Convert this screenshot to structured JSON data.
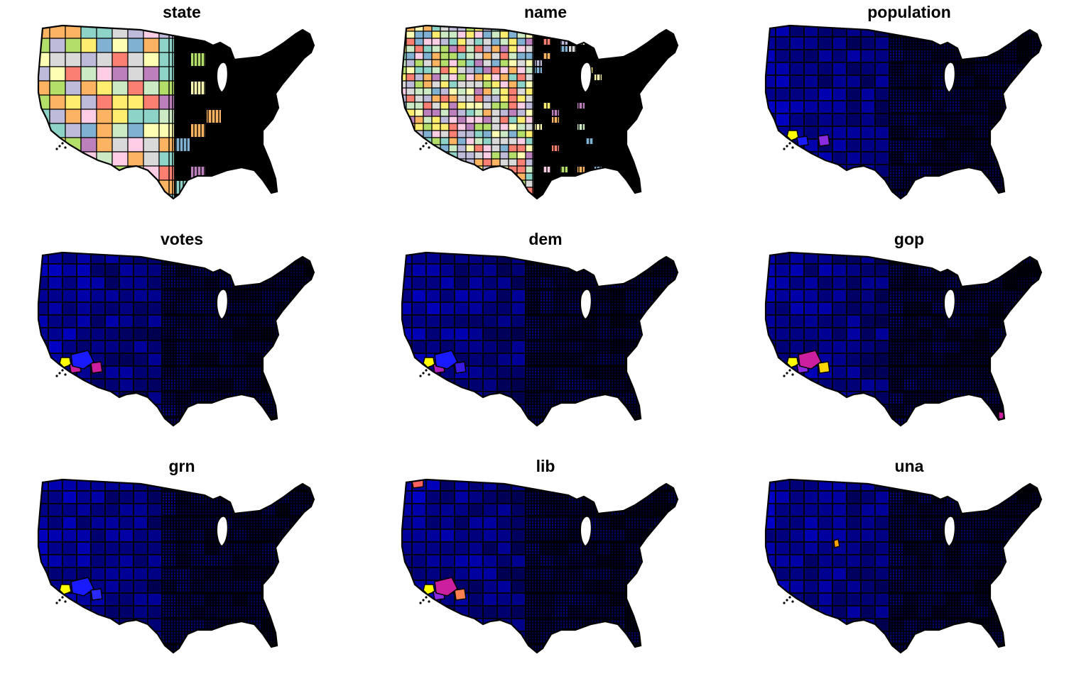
{
  "figure": {
    "panels": [
      {
        "title": "state",
        "style": "categorical"
      },
      {
        "title": "name",
        "style": "categorical-fine"
      },
      {
        "title": "population",
        "style": "sequential",
        "hotspots": [
          {
            "region": "la",
            "color": "#ffff00"
          },
          {
            "region": "sd",
            "color": "#1a1aff"
          },
          {
            "region": "az-maricopa",
            "color": "#8a2be2"
          }
        ]
      },
      {
        "title": "votes",
        "style": "sequential",
        "hotspots": [
          {
            "region": "la",
            "color": "#ffff00"
          },
          {
            "region": "sd",
            "color": "#cc1fa0"
          },
          {
            "region": "az-maricopa",
            "color": "#cc1fa0"
          },
          {
            "region": "ca-south",
            "color": "#1a1aff"
          }
        ]
      },
      {
        "title": "dem",
        "style": "sequential",
        "hotspots": [
          {
            "region": "la",
            "color": "#ffff00"
          },
          {
            "region": "sd",
            "color": "#b01fc0"
          },
          {
            "region": "az-maricopa",
            "color": "#3a1ae0"
          },
          {
            "region": "ca-south",
            "color": "#1a1aff"
          }
        ]
      },
      {
        "title": "gop",
        "style": "sequential",
        "hotspots": [
          {
            "region": "la",
            "color": "#ffff00"
          },
          {
            "region": "sd",
            "color": "#8a2be2"
          },
          {
            "region": "az-maricopa",
            "color": "#ffd700"
          },
          {
            "region": "ca-south",
            "color": "#cc1fa0"
          },
          {
            "region": "fl-south",
            "color": "#cc1fa0"
          }
        ]
      },
      {
        "title": "grn",
        "style": "sequential",
        "hotspots": [
          {
            "region": "la",
            "color": "#ffff00"
          },
          {
            "region": "ca-south",
            "color": "#1a1aff"
          },
          {
            "region": "az-maricopa",
            "color": "#2a2aff"
          }
        ]
      },
      {
        "title": "lib",
        "style": "sequential",
        "hotspots": [
          {
            "region": "la",
            "color": "#ffff00"
          },
          {
            "region": "sd",
            "color": "#8a2be2"
          },
          {
            "region": "az-maricopa",
            "color": "#ff7f50"
          },
          {
            "region": "ca-south",
            "color": "#cc1fa0"
          },
          {
            "region": "wa-north",
            "color": "#ff6060"
          }
        ]
      },
      {
        "title": "una",
        "style": "sequential",
        "hotspots": [
          {
            "region": "ut-north",
            "color": "#ffa500"
          }
        ]
      }
    ]
  }
}
